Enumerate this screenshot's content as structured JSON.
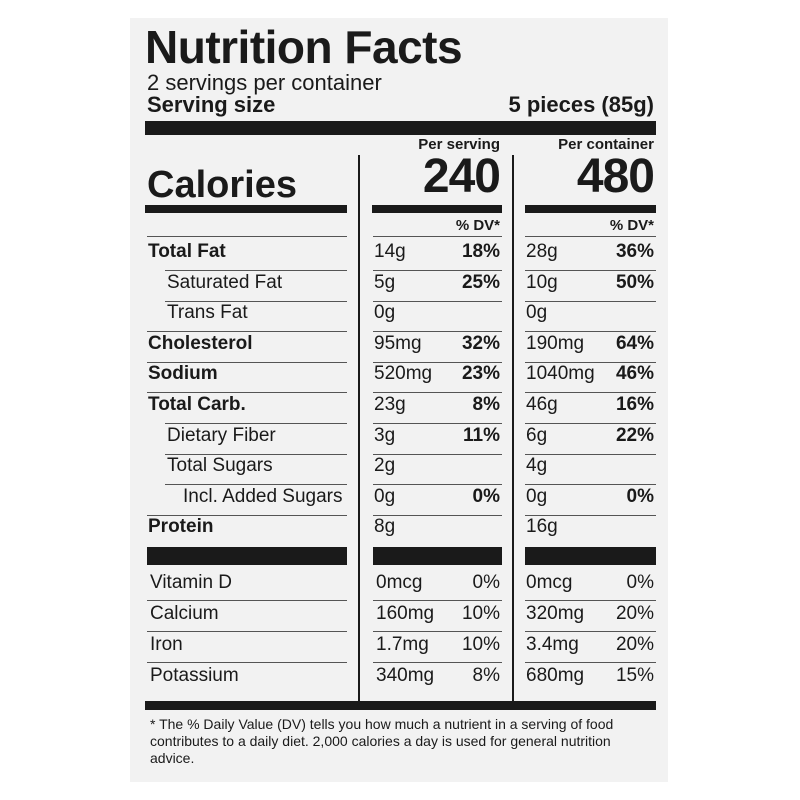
{
  "title": "Nutrition Facts",
  "servings_per_container": "2 servings per container",
  "serving_size_label": "Serving size",
  "serving_size_value": "5 pieces (85g)",
  "columns": {
    "per_serving_label": "Per serving",
    "per_container_label": "Per container",
    "dv_label": "% DV*"
  },
  "calories": {
    "label": "Calories",
    "per_serving": "240",
    "per_container": "480"
  },
  "nutrients": [
    {
      "name": "Total Fat",
      "s_amt": "14g",
      "s_dv": "18%",
      "c_amt": "28g",
      "c_dv": "36%"
    },
    {
      "name": "Saturated Fat",
      "s_amt": "5g",
      "s_dv": "25%",
      "c_amt": "10g",
      "c_dv": "50%"
    },
    {
      "name": "Trans Fat",
      "s_amt": "0g",
      "s_dv": "",
      "c_amt": "0g",
      "c_dv": ""
    },
    {
      "name": "Cholesterol",
      "s_amt": "95mg",
      "s_dv": "32%",
      "c_amt": "190mg",
      "c_dv": "64%"
    },
    {
      "name": "Sodium",
      "s_amt": "520mg",
      "s_dv": "23%",
      "c_amt": "1040mg",
      "c_dv": "46%"
    },
    {
      "name": "Total Carb.",
      "s_amt": "23g",
      "s_dv": "8%",
      "c_amt": "46g",
      "c_dv": "16%"
    },
    {
      "name": "Dietary Fiber",
      "s_amt": "3g",
      "s_dv": "11%",
      "c_amt": "6g",
      "c_dv": "22%"
    },
    {
      "name": "Total Sugars",
      "s_amt": "2g",
      "s_dv": "",
      "c_amt": "4g",
      "c_dv": ""
    },
    {
      "name": "Incl. Added Sugars",
      "s_amt": "0g",
      "s_dv": "0%",
      "c_amt": "0g",
      "c_dv": "0%"
    },
    {
      "name": "Protein",
      "s_amt": "8g",
      "s_dv": "",
      "c_amt": "16g",
      "c_dv": ""
    }
  ],
  "vitamins": [
    {
      "name": "Vitamin D",
      "s_amt": "0mcg",
      "s_dv": "0%",
      "c_amt": "0mcg",
      "c_dv": "0%"
    },
    {
      "name": "Calcium",
      "s_amt": "160mg",
      "s_dv": "10%",
      "c_amt": "320mg",
      "c_dv": "20%"
    },
    {
      "name": "Iron",
      "s_amt": "1.7mg",
      "s_dv": "10%",
      "c_amt": "3.4mg",
      "c_dv": "20%"
    },
    {
      "name": "Potassium",
      "s_amt": "340mg",
      "s_dv": "8%",
      "c_amt": "680mg",
      "c_dv": "15%"
    }
  ],
  "footnote": "* The % Daily Value (DV) tells you how much a nutrient in a serving of food contributes to a daily diet. 2,000 calories a day is used for general nutrition advice."
}
